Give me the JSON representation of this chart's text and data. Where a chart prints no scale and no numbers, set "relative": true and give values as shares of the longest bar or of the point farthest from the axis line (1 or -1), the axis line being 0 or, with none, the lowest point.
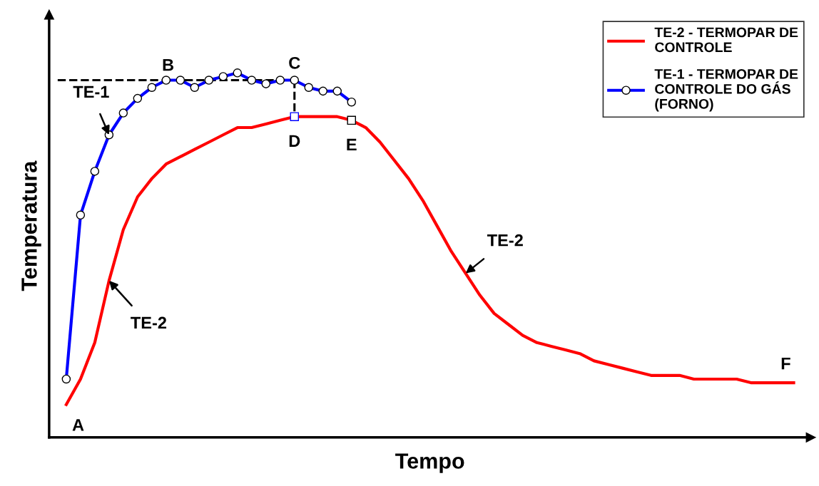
{
  "chart_data": {
    "type": "line",
    "relative": true,
    "xlabel": "Tempo",
    "ylabel": "Temperatura",
    "legend": "top right",
    "categories": [
      null,
      null,
      null,
      null,
      null,
      null,
      null,
      null,
      null,
      null,
      null,
      null,
      null,
      null,
      null,
      null,
      null,
      null,
      null,
      null,
      null,
      null,
      null,
      null,
      null,
      null,
      null,
      null,
      null,
      null,
      null,
      null,
      null,
      null,
      null,
      null,
      null,
      null,
      null,
      null,
      null,
      null,
      null,
      null,
      null,
      null,
      null,
      null,
      null,
      null,
      null,
      null
    ],
    "series": [
      {
        "name": "TE-2 - TERMOPAR DE\nCONTROLE",
        "color": "#ff0000",
        "marker": "none",
        "values": [
          0.09,
          0.16,
          0.26,
          0.43,
          0.57,
          0.66,
          0.71,
          0.75,
          0.77,
          0.79,
          0.81,
          0.83,
          0.85,
          0.85,
          0.86,
          0.87,
          0.88,
          0.88,
          0.88,
          0.88,
          0.87,
          0.85,
          0.81,
          0.76,
          0.71,
          0.65,
          0.58,
          0.51,
          0.45,
          0.39,
          0.34,
          0.31,
          0.28,
          0.26,
          0.25,
          0.24,
          0.23,
          0.21,
          0.2,
          0.19,
          0.18,
          0.17,
          0.17,
          0.17,
          0.16,
          0.16,
          0.16,
          0.16,
          0.15,
          0.15,
          0.15,
          0.15
        ]
      },
      {
        "name": "TE-1 - TERMOPAR DE\nCONTROLE DO GÁS\n(FORNO)",
        "color": "#0000ff",
        "marker": "circle",
        "values": [
          0.16,
          0.61,
          0.73,
          0.83,
          0.89,
          0.93,
          0.96,
          0.98,
          0.98,
          0.96,
          0.98,
          0.99,
          1.0,
          0.98,
          0.97,
          0.98,
          0.98,
          0.96,
          0.95,
          0.95,
          0.92,
          null,
          null,
          null,
          null,
          null,
          null,
          null,
          null,
          null,
          null,
          null,
          null,
          null,
          null,
          null,
          null,
          null,
          null,
          null,
          null,
          null,
          null,
          null,
          null,
          null,
          null,
          null,
          null,
          null,
          null,
          null
        ]
      }
    ],
    "annotations": [
      "A",
      "B",
      "C",
      "D",
      "E",
      "F",
      "TE-1",
      "TE-2",
      "TE-2"
    ]
  }
}
